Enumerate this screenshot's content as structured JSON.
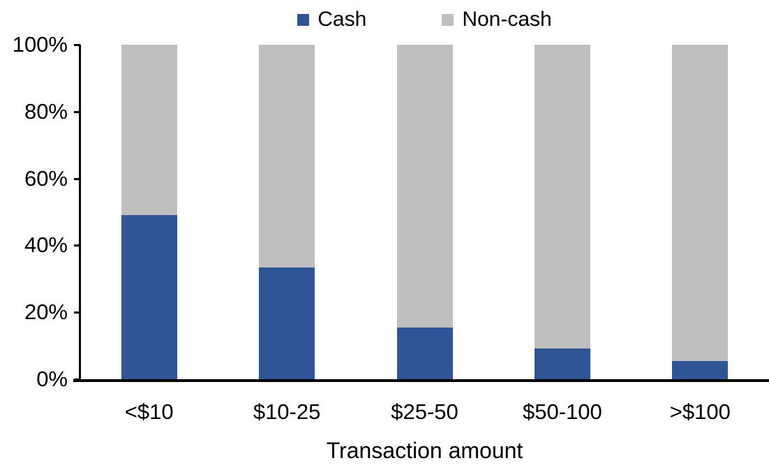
{
  "chart_data": {
    "type": "bar",
    "stacked": true,
    "percent_stacked": true,
    "title": "",
    "xlabel": "Transaction amount",
    "ylabel": "",
    "categories": [
      "<$10",
      "$10-25",
      "$25-50",
      "$50-100",
      ">$100"
    ],
    "series": [
      {
        "name": "Cash",
        "color": "#2F5597",
        "values": [
          49.0,
          33.3,
          15.4,
          9.2,
          5.4
        ]
      },
      {
        "name": "Non-cash",
        "color": "#BFBFBF",
        "values": [
          51.0,
          66.7,
          84.6,
          90.8,
          94.6
        ]
      }
    ],
    "ylim": [
      0,
      100
    ],
    "yticks": [
      "0%",
      "20%",
      "40%",
      "60%",
      "80%",
      "100%"
    ],
    "legend_position": "top-center",
    "grid": false,
    "axis_color": "#000000",
    "background_color": "#FFFFFF"
  }
}
